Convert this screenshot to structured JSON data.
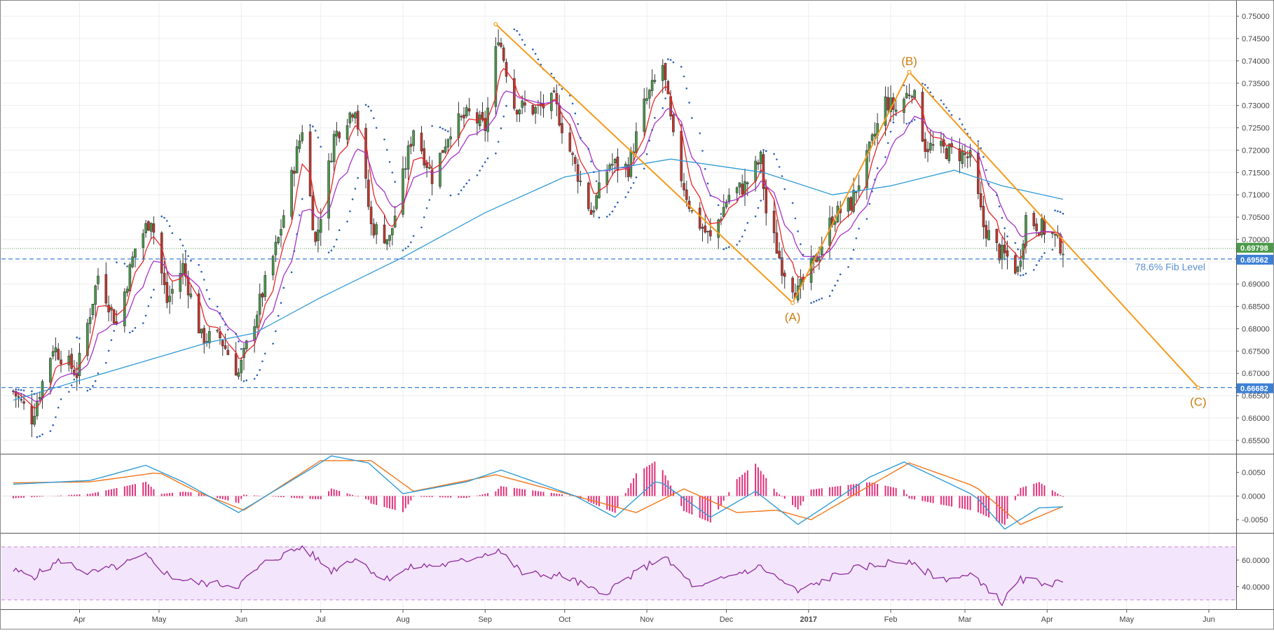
{
  "chart_data": [
    {
      "type": "candlestick",
      "title": "",
      "x_ticks": [
        {
          "label": "Apr",
          "date": "2016-04-01"
        },
        {
          "label": "May",
          "date": "2016-05-01"
        },
        {
          "label": "Jun",
          "date": "2016-06-01"
        },
        {
          "label": "Jul",
          "date": "2016-07-01"
        },
        {
          "label": "Aug",
          "date": "2016-08-01"
        },
        {
          "label": "Sep",
          "date": "2016-09-01"
        },
        {
          "label": "Oct",
          "date": "2016-10-01"
        },
        {
          "label": "Nov",
          "date": "2016-11-01"
        },
        {
          "label": "Dec",
          "date": "2016-12-01"
        },
        {
          "label": "2017",
          "date": "2017-01-01",
          "bold": true
        },
        {
          "label": "Feb",
          "date": "2017-02-01"
        },
        {
          "label": "Mar",
          "date": "2017-03-01"
        },
        {
          "label": "Apr",
          "date": "2017-04-01"
        },
        {
          "label": "May",
          "date": "2017-05-01"
        },
        {
          "label": "Jun",
          "date": "2017-06-01"
        }
      ],
      "y_ticks": [
        "0.75000",
        "0.74500",
        "0.74000",
        "0.73500",
        "0.73000",
        "0.72500",
        "0.72000",
        "0.71500",
        "0.71000",
        "0.70500",
        "0.70000",
        "0.69500",
        "0.69000",
        "0.68500",
        "0.68000",
        "0.67500",
        "0.67000",
        "0.66500",
        "0.66000",
        "0.65500"
      ],
      "ylim": [
        0.652,
        0.753
      ],
      "grid": true,
      "colors": {
        "up": "#4a9a4a",
        "down": "#c8352b",
        "wick": "#333333",
        "ema_fast": "#e8262a",
        "ema_mid": "#a533c9",
        "sma_slow": "#2f9bd6",
        "psar": "#2c5fb5",
        "pattern": "#f59a1b",
        "level": "#3c7fd6",
        "last_price": "#4a9a4a"
      },
      "anchors": [
        {
          "date": "2016-03-07",
          "close": 0.666
        },
        {
          "date": "2016-03-14",
          "close": 0.66
        },
        {
          "date": "2016-03-22",
          "close": 0.676
        },
        {
          "date": "2016-03-31",
          "close": 0.67
        },
        {
          "date": "2016-04-08",
          "close": 0.692
        },
        {
          "date": "2016-04-15",
          "close": 0.681
        },
        {
          "date": "2016-04-22",
          "close": 0.698
        },
        {
          "date": "2016-04-28",
          "close": 0.705
        },
        {
          "date": "2016-05-04",
          "close": 0.686
        },
        {
          "date": "2016-05-10",
          "close": 0.694
        },
        {
          "date": "2016-05-17",
          "close": 0.678
        },
        {
          "date": "2016-05-24",
          "close": 0.678
        },
        {
          "date": "2016-05-31",
          "close": 0.67
        },
        {
          "date": "2016-06-06",
          "close": 0.682
        },
        {
          "date": "2016-06-15",
          "close": 0.7
        },
        {
          "date": "2016-06-24",
          "close": 0.725
        },
        {
          "date": "2016-06-29",
          "close": 0.699
        },
        {
          "date": "2016-07-06",
          "close": 0.723
        },
        {
          "date": "2016-07-14",
          "close": 0.73
        },
        {
          "date": "2016-07-20",
          "close": 0.703
        },
        {
          "date": "2016-07-27",
          "close": 0.7
        },
        {
          "date": "2016-08-05",
          "close": 0.725
        },
        {
          "date": "2016-08-12",
          "close": 0.714
        },
        {
          "date": "2016-08-19",
          "close": 0.725
        },
        {
          "date": "2016-08-26",
          "close": 0.728
        },
        {
          "date": "2016-09-01",
          "close": 0.725
        },
        {
          "date": "2016-09-06",
          "close": 0.746
        },
        {
          "date": "2016-09-12",
          "close": 0.73
        },
        {
          "date": "2016-09-20",
          "close": 0.729
        },
        {
          "date": "2016-09-27",
          "close": 0.731
        },
        {
          "date": "2016-10-04",
          "close": 0.718
        },
        {
          "date": "2016-10-11",
          "close": 0.706
        },
        {
          "date": "2016-10-18",
          "close": 0.717
        },
        {
          "date": "2016-10-25",
          "close": 0.716
        },
        {
          "date": "2016-10-31",
          "close": 0.73
        },
        {
          "date": "2016-11-07",
          "close": 0.739
        },
        {
          "date": "2016-11-12",
          "close": 0.718
        },
        {
          "date": "2016-11-18",
          "close": 0.706
        },
        {
          "date": "2016-11-25",
          "close": 0.7
        },
        {
          "date": "2016-12-02",
          "close": 0.71
        },
        {
          "date": "2016-12-08",
          "close": 0.712
        },
        {
          "date": "2016-12-14",
          "close": 0.718
        },
        {
          "date": "2016-12-16",
          "close": 0.706
        },
        {
          "date": "2016-12-22",
          "close": 0.694
        },
        {
          "date": "2016-12-28",
          "close": 0.688
        },
        {
          "date": "2017-01-04",
          "close": 0.696
        },
        {
          "date": "2017-01-10",
          "close": 0.705
        },
        {
          "date": "2017-01-17",
          "close": 0.708
        },
        {
          "date": "2017-01-23",
          "close": 0.718
        },
        {
          "date": "2017-01-30",
          "close": 0.731
        },
        {
          "date": "2017-02-03",
          "close": 0.729
        },
        {
          "date": "2017-02-09",
          "close": 0.734
        },
        {
          "date": "2017-02-14",
          "close": 0.721
        },
        {
          "date": "2017-02-21",
          "close": 0.72
        },
        {
          "date": "2017-02-28",
          "close": 0.719
        },
        {
          "date": "2017-03-03",
          "close": 0.718
        },
        {
          "date": "2017-03-08",
          "close": 0.703
        },
        {
          "date": "2017-03-14",
          "close": 0.697
        },
        {
          "date": "2017-03-17",
          "close": 0.696
        },
        {
          "date": "2017-03-21",
          "close": 0.693
        },
        {
          "date": "2017-03-24",
          "close": 0.705
        },
        {
          "date": "2017-03-29",
          "close": 0.703
        },
        {
          "date": "2017-04-03",
          "close": 0.701
        },
        {
          "date": "2017-04-07",
          "close": 0.698
        }
      ],
      "lines": {
        "sma_slow": [
          {
            "date": "2016-03-07",
            "value": 0.664
          },
          {
            "date": "2016-04-10",
            "value": 0.67
          },
          {
            "date": "2016-05-20",
            "value": 0.677
          },
          {
            "date": "2016-06-06",
            "value": 0.679
          },
          {
            "date": "2016-07-01",
            "value": 0.687
          },
          {
            "date": "2016-08-01",
            "value": 0.696
          },
          {
            "date": "2016-09-01",
            "value": 0.706
          },
          {
            "date": "2016-10-01",
            "value": 0.714
          },
          {
            "date": "2016-11-10",
            "value": 0.718
          },
          {
            "date": "2016-12-15",
            "value": 0.715
          },
          {
            "date": "2017-01-10",
            "value": 0.71
          },
          {
            "date": "2017-02-01",
            "value": 0.712
          },
          {
            "date": "2017-02-25",
            "value": 0.7155
          },
          {
            "date": "2017-03-15",
            "value": 0.712
          },
          {
            "date": "2017-04-07",
            "value": 0.709
          }
        ]
      },
      "annotations": {
        "pattern_points": [
          {
            "label": "",
            "date": "2016-09-05",
            "value": 0.7482
          },
          {
            "label": "(A)",
            "date": "2016-12-26",
            "value": 0.6858
          },
          {
            "label": "(B)",
            "date": "2017-02-08",
            "value": 0.7375
          },
          {
            "label": "(C)",
            "date": "2017-05-28",
            "value": 0.6668
          }
        ],
        "downtrend_line": [
          {
            "date": "2017-02-08",
            "value": 0.7375
          },
          {
            "date": "2017-05-28",
            "value": 0.6668
          }
        ],
        "levels": [
          {
            "value": 0.69562,
            "label": "0.69562",
            "style": "dashed",
            "text": "78.6% Fib Level"
          },
          {
            "value": 0.66682,
            "label": "0.66682",
            "style": "dashed",
            "text": ""
          },
          {
            "value": 0.69798,
            "label": "0.69798",
            "style": "dotted-price",
            "text": ""
          }
        ],
        "support_left": {
          "start": "2016-03-26",
          "end": "2016-05-31",
          "value": 0.6668
        }
      }
    },
    {
      "type": "macd",
      "y_ticks": [
        "0.0050",
        "0.0000",
        "-0.0050"
      ],
      "ylim": [
        -0.0078,
        0.0088
      ],
      "macd": [
        {
          "date": "2016-03-07",
          "value": 0.0025
        },
        {
          "date": "2016-04-05",
          "value": 0.0033
        },
        {
          "date": "2016-04-26",
          "value": 0.0065
        },
        {
          "date": "2016-05-10",
          "value": 0.003
        },
        {
          "date": "2016-05-31",
          "value": -0.0035
        },
        {
          "date": "2016-06-28",
          "value": 0.006
        },
        {
          "date": "2016-07-05",
          "value": 0.0085
        },
        {
          "date": "2016-07-19",
          "value": 0.007
        },
        {
          "date": "2016-08-01",
          "value": 0.0005
        },
        {
          "date": "2016-08-25",
          "value": 0.003
        },
        {
          "date": "2016-09-07",
          "value": 0.0055
        },
        {
          "date": "2016-10-05",
          "value": 0.0
        },
        {
          "date": "2016-10-20",
          "value": -0.0045
        },
        {
          "date": "2016-11-05",
          "value": 0.0035
        },
        {
          "date": "2016-11-25",
          "value": -0.0045
        },
        {
          "date": "2016-12-12",
          "value": 0.001
        },
        {
          "date": "2016-12-28",
          "value": -0.006
        },
        {
          "date": "2017-01-24",
          "value": 0.004
        },
        {
          "date": "2017-02-06",
          "value": 0.0072
        },
        {
          "date": "2017-03-05",
          "value": 0.0
        },
        {
          "date": "2017-03-16",
          "value": -0.007
        },
        {
          "date": "2017-03-29",
          "value": -0.0025
        },
        {
          "date": "2017-04-07",
          "value": -0.0023
        }
      ],
      "signal": [
        {
          "date": "2016-03-07",
          "value": 0.0028
        },
        {
          "date": "2016-04-05",
          "value": 0.003
        },
        {
          "date": "2016-05-01",
          "value": 0.005
        },
        {
          "date": "2016-05-15",
          "value": 0.001
        },
        {
          "date": "2016-06-02",
          "value": -0.003
        },
        {
          "date": "2016-07-01",
          "value": 0.0075
        },
        {
          "date": "2016-07-20",
          "value": 0.0075
        },
        {
          "date": "2016-08-05",
          "value": 0.001
        },
        {
          "date": "2016-09-05",
          "value": 0.0045
        },
        {
          "date": "2016-10-15",
          "value": -0.0015
        },
        {
          "date": "2016-10-28",
          "value": -0.0035
        },
        {
          "date": "2016-11-15",
          "value": 0.0015
        },
        {
          "date": "2016-12-05",
          "value": -0.0035
        },
        {
          "date": "2016-12-20",
          "value": -0.003
        },
        {
          "date": "2017-01-02",
          "value": -0.005
        },
        {
          "date": "2017-01-25",
          "value": 0.0025
        },
        {
          "date": "2017-02-08",
          "value": 0.007
        },
        {
          "date": "2017-03-05",
          "value": 0.002
        },
        {
          "date": "2017-03-22",
          "value": -0.006
        },
        {
          "date": "2017-04-07",
          "value": -0.0022
        }
      ],
      "colors": {
        "macd": "#2f9bd6",
        "signal": "#f2761b",
        "histogram": "#e0307a"
      }
    },
    {
      "type": "rsi",
      "y_ticks": [
        "60.0000",
        "40.0000"
      ],
      "ylim": [
        23,
        80
      ],
      "band": [
        30,
        70
      ],
      "values": [
        {
          "date": "2016-03-07",
          "value": 52
        },
        {
          "date": "2016-03-15",
          "value": 48
        },
        {
          "date": "2016-03-25",
          "value": 60
        },
        {
          "date": "2016-04-05",
          "value": 50
        },
        {
          "date": "2016-04-15",
          "value": 55
        },
        {
          "date": "2016-04-26",
          "value": 63
        },
        {
          "date": "2016-05-05",
          "value": 48
        },
        {
          "date": "2016-05-15",
          "value": 43
        },
        {
          "date": "2016-05-31",
          "value": 41
        },
        {
          "date": "2016-06-10",
          "value": 58
        },
        {
          "date": "2016-06-24",
          "value": 70
        },
        {
          "date": "2016-07-05",
          "value": 52
        },
        {
          "date": "2016-07-14",
          "value": 62
        },
        {
          "date": "2016-07-25",
          "value": 45
        },
        {
          "date": "2016-08-05",
          "value": 55
        },
        {
          "date": "2016-08-20",
          "value": 57
        },
        {
          "date": "2016-09-06",
          "value": 68
        },
        {
          "date": "2016-09-15",
          "value": 50
        },
        {
          "date": "2016-10-01",
          "value": 48
        },
        {
          "date": "2016-10-15",
          "value": 34
        },
        {
          "date": "2016-11-07",
          "value": 63
        },
        {
          "date": "2016-11-20",
          "value": 38
        },
        {
          "date": "2016-12-05",
          "value": 50
        },
        {
          "date": "2016-12-14",
          "value": 55
        },
        {
          "date": "2016-12-28",
          "value": 36
        },
        {
          "date": "2017-01-15",
          "value": 52
        },
        {
          "date": "2017-02-05",
          "value": 60
        },
        {
          "date": "2017-02-20",
          "value": 46
        },
        {
          "date": "2017-03-05",
          "value": 48
        },
        {
          "date": "2017-03-15",
          "value": 28
        },
        {
          "date": "2017-03-22",
          "value": 45
        },
        {
          "date": "2017-04-07",
          "value": 42
        }
      ],
      "colors": {
        "line": "#8e2b9d",
        "band_fill": "#f3e5fb",
        "band_line": "#c48bd2"
      }
    }
  ]
}
